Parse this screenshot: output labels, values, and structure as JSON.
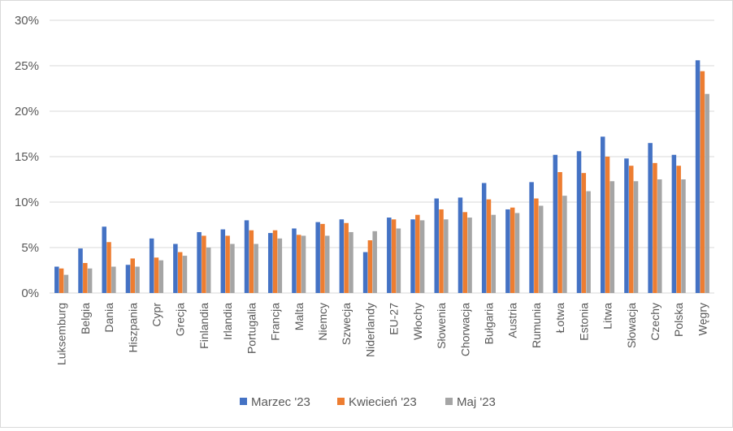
{
  "chart_data": {
    "type": "bar",
    "title": "",
    "xlabel": "",
    "ylabel": "",
    "ylim": [
      0,
      30
    ],
    "yticks": [
      "0%",
      "5%",
      "10%",
      "15%",
      "20%",
      "25%",
      "30%"
    ],
    "grid": true,
    "legend_position": "bottom",
    "categories": [
      "Luksemburg",
      "Belgia",
      "Dania",
      "Hiszpania",
      "Cypr",
      "Grecja",
      "Finlandia",
      "Irlandia",
      "Portugalia",
      "Francja",
      "Malta",
      "Niemcy",
      "Szwecja",
      "Niderlandy",
      "EU-27",
      "Włochy",
      "Słowenia",
      "Chorwacja",
      "Bułgaria",
      "Austria",
      "Rumunia",
      "Łotwa",
      "Estonia",
      "Litwa",
      "Słowacja",
      "Czechy",
      "Polska",
      "Węgry"
    ],
    "series": [
      {
        "name": "Marzec '23",
        "color": "#4472c4",
        "values": [
          2.9,
          4.9,
          7.3,
          3.1,
          6.0,
          5.4,
          6.7,
          7.0,
          8.0,
          6.6,
          7.1,
          7.8,
          8.1,
          4.5,
          8.3,
          8.1,
          10.4,
          10.5,
          12.1,
          9.2,
          12.2,
          15.2,
          15.6,
          17.2,
          14.8,
          16.5,
          15.2,
          25.6
        ]
      },
      {
        "name": "Kwiecień '23",
        "color": "#ed7d31",
        "values": [
          2.7,
          3.3,
          5.6,
          3.8,
          3.9,
          4.5,
          6.3,
          6.3,
          6.9,
          6.9,
          6.4,
          7.6,
          7.7,
          5.8,
          8.1,
          8.6,
          9.2,
          8.9,
          10.3,
          9.4,
          10.4,
          13.3,
          13.2,
          15.0,
          14.0,
          14.3,
          14.0,
          24.4
        ]
      },
      {
        "name": "Maj '23",
        "color": "#a5a5a5",
        "values": [
          2.0,
          2.7,
          2.9,
          2.9,
          3.6,
          4.1,
          5.0,
          5.4,
          5.4,
          6.0,
          6.3,
          6.3,
          6.7,
          6.8,
          7.1,
          8.0,
          8.1,
          8.3,
          8.6,
          8.8,
          9.6,
          10.7,
          11.2,
          12.3,
          12.3,
          12.5,
          12.5,
          21.9
        ]
      }
    ]
  }
}
